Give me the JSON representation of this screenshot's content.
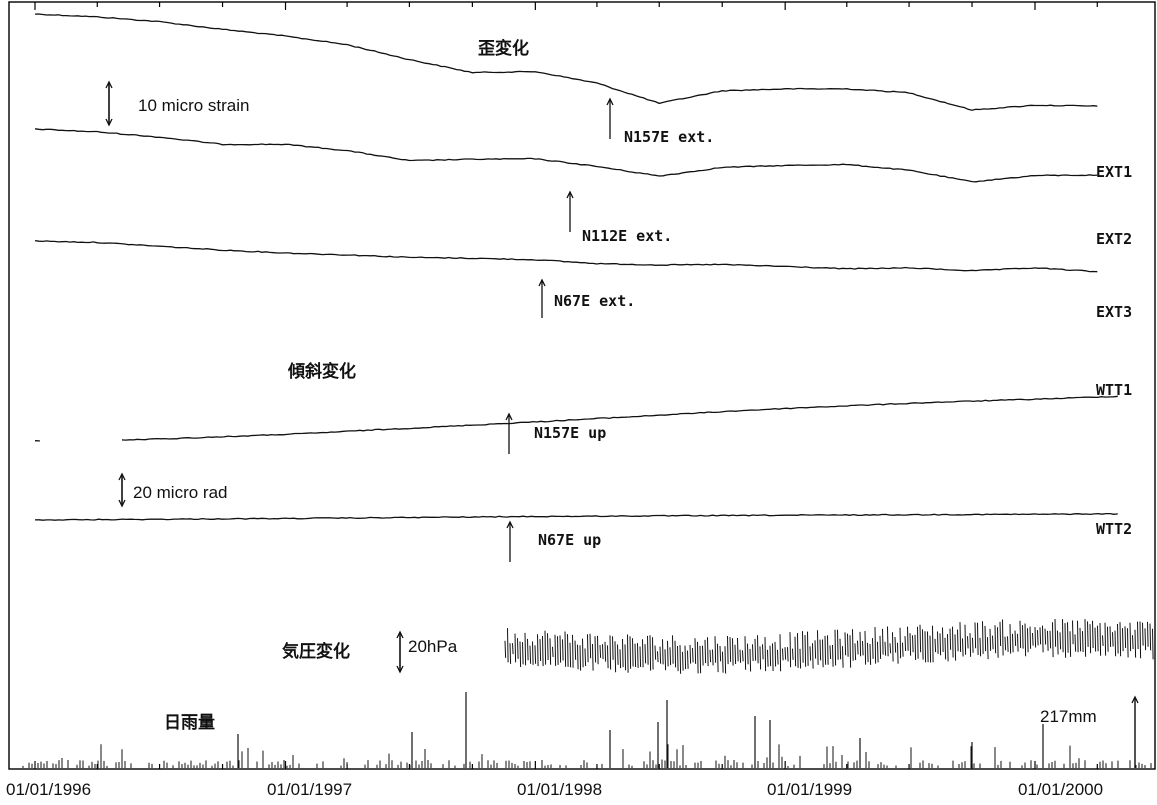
{
  "chart_data": {
    "type": "line",
    "x_tick_labels": [
      "01/01/1996",
      "01/01/1997",
      "01/01/1998",
      "01/01/1999",
      "01/01/2000"
    ],
    "xlim": [
      "1996-01-01",
      "2000-05-01"
    ],
    "grid": false,
    "group_labels": {
      "strain": "歪変化",
      "tilt": "傾斜変化",
      "pressure": "気圧変化",
      "rain": "日雨量"
    },
    "scale_bars": {
      "strain": "10 micro strain",
      "tilt": "20 micro rad",
      "pressure": "20hPa",
      "rain_max": "217mm"
    },
    "series": [
      {
        "name": "EXT1",
        "direction": "N157E ext.",
        "unit": "micro strain",
        "x": [
          "1996-01-01",
          "1996-04-01",
          "1996-07-01",
          "1996-10-01",
          "1997-01-01",
          "1997-04-01",
          "1997-07-01",
          "1997-10-01",
          "1998-01-01",
          "1998-04-01",
          "1998-07-01",
          "1998-10-01",
          "1999-01-01",
          "1999-04-01",
          "1999-07-01",
          "1999-10-01",
          "2000-01-01",
          "2000-04-01"
        ],
        "values": [
          0,
          -0.6,
          -1.6,
          -3.2,
          -4.6,
          -6.4,
          -9.5,
          -12.2,
          -12.0,
          -14.4,
          -18.6,
          -16.0,
          -15.6,
          -15.6,
          -16.4,
          -20.0,
          -19.0,
          -19.2
        ]
      },
      {
        "name": "EXT2",
        "direction": "N112E ext.",
        "unit": "micro strain",
        "x": [
          "1996-01-01",
          "1996-04-01",
          "1996-07-01",
          "1996-10-01",
          "1997-01-01",
          "1997-04-01",
          "1997-07-01",
          "1997-10-01",
          "1998-01-01",
          "1998-04-01",
          "1998-07-01",
          "1998-10-01",
          "1999-01-01",
          "1999-04-01",
          "1999-07-01",
          "1999-10-01",
          "2000-01-01",
          "2000-04-01"
        ],
        "values": [
          0,
          -0.6,
          -1.7,
          -3.2,
          -3.2,
          -4.5,
          -6.6,
          -6.3,
          -6.2,
          -7.8,
          -9.8,
          -8.0,
          -7.6,
          -7.4,
          -8.6,
          -11.0,
          -9.7,
          -9.6
        ]
      },
      {
        "name": "EXT3",
        "direction": "N67E ext.",
        "unit": "micro strain",
        "x": [
          "1996-01-01",
          "1996-04-01",
          "1996-07-01",
          "1996-10-01",
          "1997-01-01",
          "1997-04-01",
          "1997-07-01",
          "1997-10-01",
          "1998-01-01",
          "1998-04-01",
          "1998-07-01",
          "1998-10-01",
          "1999-01-01",
          "1999-04-01",
          "1999-07-01",
          "1999-10-01",
          "2000-01-01",
          "2000-04-01"
        ],
        "values": [
          0,
          -0.3,
          -1.1,
          -1.9,
          -2.5,
          -2.9,
          -3.4,
          -3.6,
          -3.9,
          -4.7,
          -5.0,
          -4.9,
          -5.3,
          -5.8,
          -5.6,
          -6.2,
          -5.6,
          -6.4
        ]
      },
      {
        "name": "WTT1",
        "direction": "N157E up",
        "unit": "micro rad",
        "x": [
          "1996-01-01",
          "1996-02-01",
          "1996-05-01",
          "1996-08-01",
          "1996-11-01",
          "1997-02-01",
          "1997-05-01",
          "1997-08-01",
          "1997-11-01",
          "1998-02-01",
          "1998-05-01",
          "1998-08-01",
          "1998-11-01",
          "1999-02-01",
          "1999-05-01",
          "1999-08-01",
          "1999-11-01",
          "2000-02-01",
          "2000-05-01"
        ],
        "values": [
          0,
          0.2,
          0.6,
          2.2,
          4.0,
          6.0,
          8.6,
          11.0,
          13.6,
          16.2,
          18.8,
          21.6,
          24.4,
          26.8,
          28.8,
          30.8,
          32.4,
          34.0,
          35.8
        ]
      },
      {
        "name": "WTT2",
        "direction": "N67E up",
        "unit": "micro rad",
        "x": [
          "1996-01-01",
          "1997-01-01",
          "1998-01-01",
          "1999-01-01",
          "2000-01-01",
          "2000-05-01"
        ],
        "values": [
          0,
          1.2,
          2.8,
          3.8,
          4.6,
          4.9
        ]
      }
    ]
  }
}
